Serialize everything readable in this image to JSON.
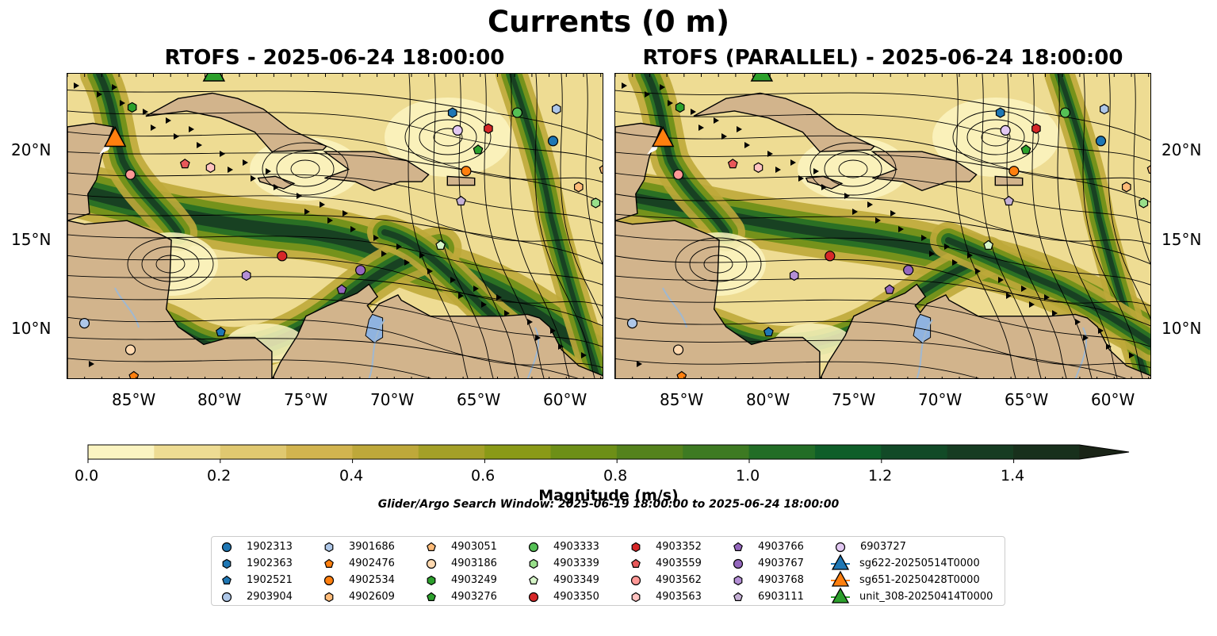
{
  "title": "Currents (0 m)",
  "panels": [
    {
      "title": "RTOFS - 2025-06-24 18:00:00"
    },
    {
      "title": "RTOFS (PARALLEL) - 2025-06-24 18:00:00"
    }
  ],
  "lat_ticks": [
    "20°N",
    "15°N",
    "10°N"
  ],
  "lon_ticks": [
    "85°W",
    "80°W",
    "75°W",
    "70°W",
    "65°W",
    "60°W"
  ],
  "colorbar": {
    "label": "Magnitude (m/s)",
    "ticks": [
      "0.0",
      "0.2",
      "0.4",
      "0.6",
      "0.8",
      "1.0",
      "1.2",
      "1.4"
    ],
    "colors": [
      "#fbf4c1",
      "#eedc93",
      "#e0c870",
      "#d2b44f",
      "#bea83a",
      "#a4a027",
      "#8a9a17",
      "#6d8f17",
      "#54821c",
      "#3d7a22",
      "#226d26",
      "#0f5e29",
      "#124a27",
      "#163c22",
      "#18301c",
      "#1a2417"
    ]
  },
  "search_window": "Glider/Argo Search Window: 2025-06-19 18:00:00 to 2025-06-24 18:00:00",
  "legend": [
    {
      "label": "1902313",
      "marker": "circle",
      "color": "#1f77b4"
    },
    {
      "label": "1902363",
      "marker": "hexagon",
      "color": "#1f77b4"
    },
    {
      "label": "1902521",
      "marker": "pentagon",
      "color": "#1f77b4"
    },
    {
      "label": "2903904",
      "marker": "circle",
      "color": "#aec7e8"
    },
    {
      "label": "3901686",
      "marker": "hexagon",
      "color": "#aec7e8"
    },
    {
      "label": "4902476",
      "marker": "pentagon",
      "color": "#ff7f0e"
    },
    {
      "label": "4902534",
      "marker": "circle",
      "color": "#ff7f0e"
    },
    {
      "label": "4902609",
      "marker": "hexagon",
      "color": "#ffbb78"
    },
    {
      "label": "4903051",
      "marker": "pentagon",
      "color": "#ffbb78"
    },
    {
      "label": "4903186",
      "marker": "circle",
      "color": "#ffd9b0"
    },
    {
      "label": "4903249",
      "marker": "hexagon",
      "color": "#2ca02c"
    },
    {
      "label": "4903276",
      "marker": "pentagon",
      "color": "#2ca02c"
    },
    {
      "label": "4903333",
      "marker": "circle",
      "color": "#55c055"
    },
    {
      "label": "4903339",
      "marker": "hexagon",
      "color": "#98df8a"
    },
    {
      "label": "4903349",
      "marker": "pentagon",
      "color": "#d6f5c8"
    },
    {
      "label": "4903350",
      "marker": "circle",
      "color": "#d62728"
    },
    {
      "label": "4903352",
      "marker": "hexagon",
      "color": "#d62728"
    },
    {
      "label": "4903559",
      "marker": "pentagon",
      "color": "#e8585a"
    },
    {
      "label": "4903562",
      "marker": "circle",
      "color": "#ff9896"
    },
    {
      "label": "4903563",
      "marker": "hexagon",
      "color": "#ffc2c0"
    },
    {
      "label": "4903766",
      "marker": "pentagon",
      "color": "#9467bd"
    },
    {
      "label": "4903767",
      "marker": "circle",
      "color": "#9467bd"
    },
    {
      "label": "4903768",
      "marker": "hexagon",
      "color": "#b48fd6"
    },
    {
      "label": "6903111",
      "marker": "pentagon",
      "color": "#c5b0d5"
    },
    {
      "label": "6903727",
      "marker": "circle",
      "color": "#e2c8f2"
    },
    {
      "label": "sg622-20250514T0000",
      "marker": "triangle",
      "color": "#1f77b4"
    },
    {
      "label": "sg651-20250428T0000",
      "marker": "triangle",
      "color": "#ff7f0e"
    },
    {
      "label": "unit_308-20250414T0000",
      "marker": "triangle",
      "color": "#2ca02c"
    }
  ],
  "map_style": {
    "land_color": "#d2b48c",
    "lake_color": "#8fb3e0",
    "river_color": "#a0b8d0",
    "streamline_color": "#000000"
  },
  "map_extent": {
    "lon": [
      -89.5,
      -58
    ],
    "lat": [
      7,
      24.3
    ]
  },
  "floats": [
    {
      "id": "1902313",
      "lon": -61.0,
      "lat": 20.5
    },
    {
      "id": "1902363",
      "lon": -66.9,
      "lat": 22.1
    },
    {
      "id": "1902521",
      "lon": -80.5,
      "lat": 9.7
    },
    {
      "id": "2903904",
      "lon": -88.5,
      "lat": 10.2
    },
    {
      "id": "3901686",
      "lon": -60.8,
      "lat": 22.3
    },
    {
      "id": "4902476",
      "lon": -85.6,
      "lat": 7.2
    },
    {
      "id": "4902534",
      "lon": -66.1,
      "lat": 18.8
    },
    {
      "id": "4902609",
      "lon": -59.5,
      "lat": 17.9
    },
    {
      "id": "4903051",
      "lon": -58.0,
      "lat": 18.9
    },
    {
      "id": "4903186",
      "lon": -85.8,
      "lat": 8.7
    },
    {
      "id": "4903249",
      "lon": -85.7,
      "lat": 22.4
    },
    {
      "id": "4903276",
      "lon": -65.4,
      "lat": 20.0
    },
    {
      "id": "4903333",
      "lon": -63.1,
      "lat": 22.1
    },
    {
      "id": "4903339",
      "lon": -58.5,
      "lat": 17.0
    },
    {
      "id": "4903349",
      "lon": -67.6,
      "lat": 14.6
    },
    {
      "id": "4903350",
      "lon": -76.9,
      "lat": 14.0
    },
    {
      "id": "4903352",
      "lon": -64.8,
      "lat": 21.2
    },
    {
      "id": "4903559",
      "lon": -82.6,
      "lat": 19.2
    },
    {
      "id": "4903562",
      "lon": -85.8,
      "lat": 18.6
    },
    {
      "id": "4903563",
      "lon": -81.1,
      "lat": 19.0
    },
    {
      "id": "4903766",
      "lon": -73.4,
      "lat": 12.1
    },
    {
      "id": "4903767",
      "lon": -72.3,
      "lat": 13.2
    },
    {
      "id": "4903768",
      "lon": -79.0,
      "lat": 12.9
    },
    {
      "id": "6903111",
      "lon": -66.4,
      "lat": 17.1
    },
    {
      "id": "6903727",
      "lon": -66.6,
      "lat": 21.1
    }
  ],
  "gliders": [
    {
      "id": "sg651-20250428T0000",
      "lon": -86.7,
      "lat": 20.6
    },
    {
      "id": "unit_308-20250414T0000",
      "lon": -80.9,
      "lat": 24.3
    }
  ]
}
